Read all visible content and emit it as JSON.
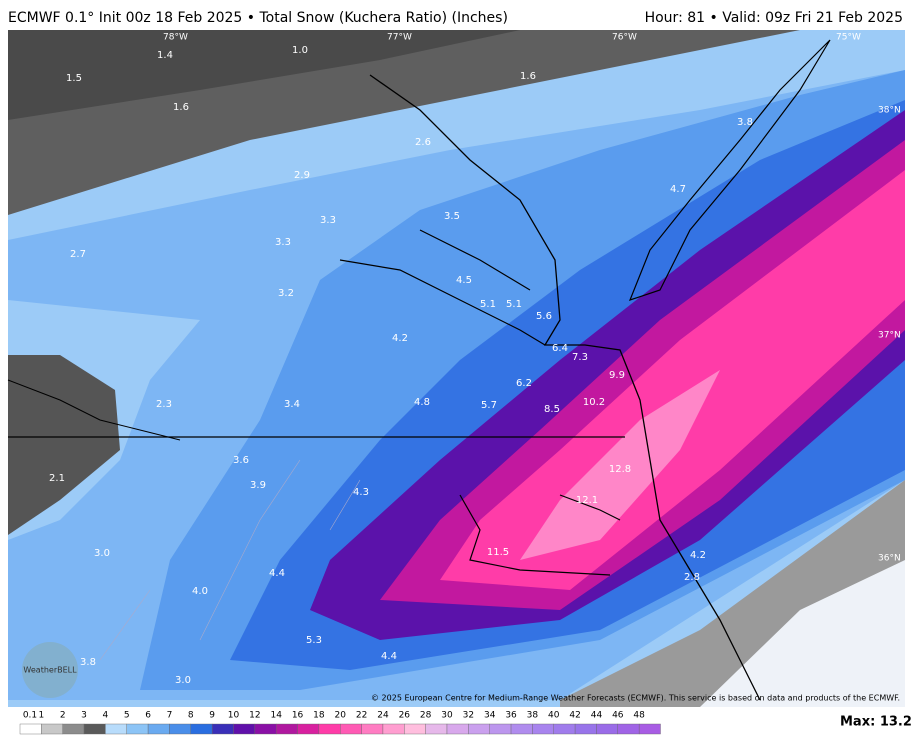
{
  "header": {
    "title": "ECMWF 0.1° Init 00z 18 Feb 2025 • Total Snow (Kuchera Ratio) (Inches)",
    "valid": "Hour: 81 • Valid: 09z Fri 21 Feb 2025"
  },
  "map": {
    "lon_labels": [
      "78°W",
      "77°W",
      "76°W",
      "75°W"
    ],
    "lat_labels": [
      "38°N",
      "37°N",
      "36°N"
    ],
    "values": [
      "1.4",
      "1.0",
      "1.5",
      "1.6",
      "1.6",
      "2.6",
      "3.8",
      "2.9",
      "4.7",
      "3.5",
      "3.3",
      "3.3",
      "2.7",
      "4.5",
      "3.2",
      "5.1",
      "5.1",
      "5.6",
      "4.2",
      "6.4",
      "7.3",
      "9.9",
      "6.2",
      "2.3",
      "3.4",
      "4.8",
      "5.7",
      "10.2",
      "8.5",
      "3.6",
      "12.8",
      "2.1",
      "3.9",
      "4.3",
      "12.1",
      "11.5",
      "3.0",
      "4.2",
      "4.4",
      "2.8",
      "4.0",
      "5.3",
      "4.4",
      "3.8",
      "3.0"
    ],
    "logo": "WeatherBELL",
    "credit": "© 2025 European Centre for Medium-Range Weather Forecasts (ECMWF). This service is based on data and products of the ECMWF."
  },
  "legend": {
    "labels": [
      "0.1",
      "1",
      "2",
      "3",
      "4",
      "5",
      "6",
      "7",
      "8",
      "9",
      "10",
      "12",
      "14",
      "16",
      "18",
      "20",
      "22",
      "24",
      "26",
      "28",
      "30",
      "32",
      "34",
      "36",
      "38",
      "40",
      "42",
      "44",
      "46",
      "48"
    ],
    "max": "Max: 13.2"
  }
}
